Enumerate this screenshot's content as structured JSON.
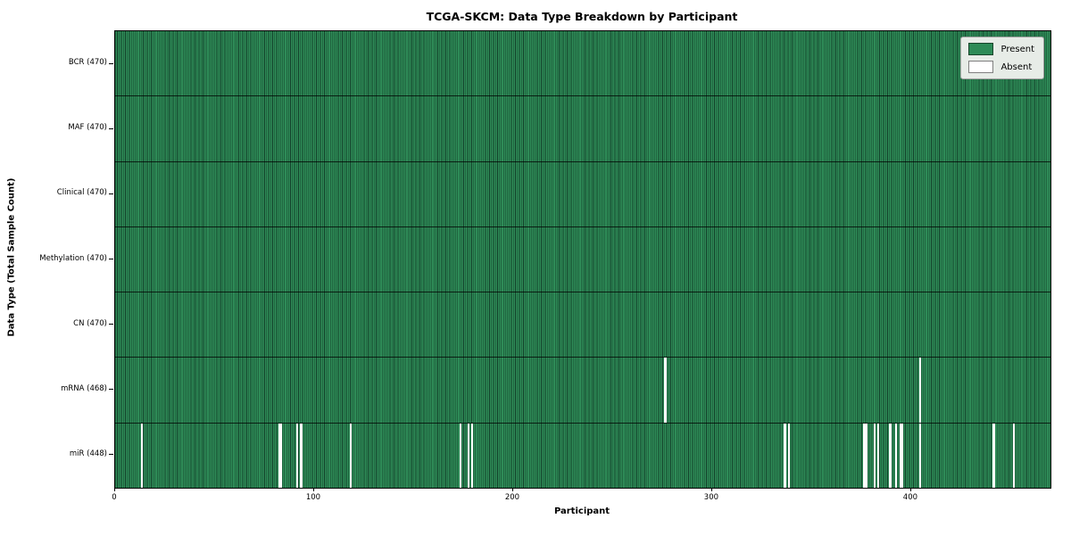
{
  "chart_data": {
    "type": "heatmap",
    "title": "TCGA-SKCM: Data Type Breakdown by Participant",
    "xlabel": "Participant",
    "ylabel": "Data Type (Total Sample Count)",
    "x_range": [
      0,
      470
    ],
    "x_ticks": [
      0,
      100,
      200,
      300,
      400
    ],
    "n_participants": 470,
    "grid": false,
    "legend_position": "upper right",
    "legend_entries": [
      {
        "label": "Present",
        "color": "#2e8b57"
      },
      {
        "label": "Absent",
        "color": "#ffffff"
      }
    ],
    "rows": [
      {
        "label": "BCR (470)",
        "name": "BCR",
        "present_count": 470,
        "absent_participants": []
      },
      {
        "label": "MAF (470)",
        "name": "MAF",
        "present_count": 470,
        "absent_participants": []
      },
      {
        "label": "Clinical (470)",
        "name": "Clinical",
        "present_count": 470,
        "absent_participants": []
      },
      {
        "label": "Methylation (470)",
        "name": "Methylation",
        "present_count": 470,
        "absent_participants": []
      },
      {
        "label": "CN (470)",
        "name": "CN",
        "present_count": 470,
        "absent_participants": []
      },
      {
        "label": "mRNA (468)",
        "name": "mRNA",
        "present_count": 468,
        "absent_participants": [
          276,
          404
        ]
      },
      {
        "label": "miR (448)",
        "name": "miR",
        "present_count": 448,
        "absent_participants": [
          13,
          82,
          83,
          91,
          93,
          118,
          173,
          177,
          179,
          336,
          338,
          376,
          377,
          381,
          383,
          389,
          392,
          394,
          395,
          404,
          441,
          451
        ]
      }
    ],
    "colors": {
      "present_fill": "#2e8b57",
      "present_edge": "#13402a",
      "absent_fill": "#ffffff",
      "row_divider": "#1a1a1a",
      "legend_bg": "#e7ece7",
      "legend_border": "#9f9f9f",
      "axis_color": "#000000",
      "background": "#ffffff"
    }
  }
}
